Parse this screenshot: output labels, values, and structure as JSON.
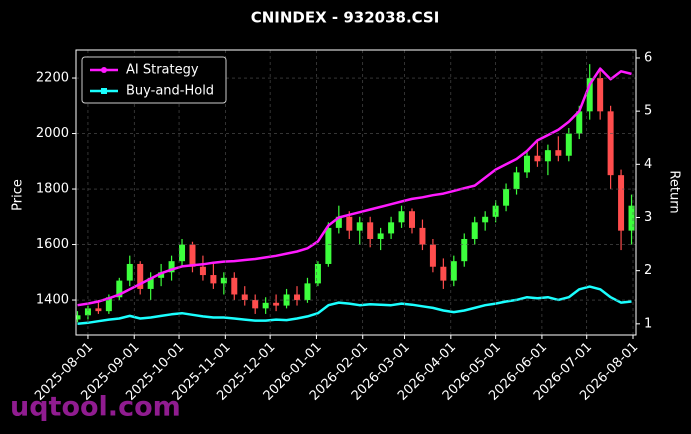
{
  "chart_data": {
    "type": "candlestick",
    "title": "CNINDEX - 932038.CSI",
    "ylabel": "Price",
    "y2label": "Return",
    "watermark": "uqtool.com",
    "x": [
      "2025-07-25",
      "2025-08-01",
      "2025-08-08",
      "2025-08-15",
      "2025-08-22",
      "2025-08-29",
      "2025-09-05",
      "2025-09-12",
      "2025-09-19",
      "2025-09-26",
      "2025-10-03",
      "2025-10-10",
      "2025-10-17",
      "2025-10-24",
      "2025-10-31",
      "2025-11-07",
      "2025-11-14",
      "2025-11-21",
      "2025-11-28",
      "2025-12-05",
      "2025-12-12",
      "2025-12-19",
      "2025-12-26",
      "2026-01-02",
      "2026-01-09",
      "2026-01-16",
      "2026-01-23",
      "2026-01-30",
      "2026-02-06",
      "2026-02-13",
      "2026-02-20",
      "2026-02-27",
      "2026-03-06",
      "2026-03-13",
      "2026-03-20",
      "2026-03-27",
      "2026-04-03",
      "2026-04-10",
      "2026-04-17",
      "2026-04-24",
      "2026-05-01",
      "2026-05-08",
      "2026-05-15",
      "2026-05-22",
      "2026-05-29",
      "2026-06-05",
      "2026-06-12",
      "2026-06-19",
      "2026-06-26",
      "2026-07-03",
      "2026-07-10",
      "2026-07-17",
      "2026-07-24",
      "2026-07-31"
    ],
    "candles": {
      "up_color": "#3dff3d",
      "down_color": "#ff4d4d",
      "open": [
        1330,
        1345,
        1370,
        1360,
        1410,
        1470,
        1530,
        1440,
        1480,
        1500,
        1540,
        1600,
        1520,
        1490,
        1460,
        1480,
        1420,
        1400,
        1370,
        1390,
        1380,
        1420,
        1400,
        1460,
        1530,
        1660,
        1700,
        1650,
        1680,
        1620,
        1640,
        1680,
        1720,
        1660,
        1600,
        1520,
        1470,
        1540,
        1620,
        1680,
        1700,
        1740,
        1800,
        1860,
        1920,
        1900,
        1940,
        1920,
        2000,
        2080,
        2200,
        2080,
        1850,
        1650
      ],
      "high": [
        1360,
        1380,
        1400,
        1420,
        1480,
        1560,
        1540,
        1500,
        1530,
        1560,
        1620,
        1610,
        1560,
        1530,
        1500,
        1500,
        1450,
        1420,
        1410,
        1420,
        1440,
        1450,
        1480,
        1540,
        1680,
        1740,
        1720,
        1700,
        1700,
        1660,
        1700,
        1740,
        1730,
        1690,
        1620,
        1550,
        1560,
        1640,
        1700,
        1720,
        1760,
        1820,
        1880,
        1940,
        1980,
        1960,
        1990,
        2020,
        2100,
        2250,
        2230,
        2100,
        1870,
        1780
      ],
      "low": [
        1320,
        1330,
        1350,
        1350,
        1400,
        1450,
        1420,
        1400,
        1450,
        1470,
        1520,
        1500,
        1470,
        1440,
        1420,
        1400,
        1380,
        1350,
        1350,
        1360,
        1370,
        1380,
        1390,
        1450,
        1520,
        1640,
        1620,
        1600,
        1590,
        1580,
        1620,
        1660,
        1640,
        1580,
        1500,
        1440,
        1450,
        1520,
        1600,
        1650,
        1680,
        1720,
        1780,
        1840,
        1880,
        1850,
        1900,
        1900,
        1980,
        2050,
        2050,
        1800,
        1580,
        1600
      ],
      "close": [
        1345,
        1370,
        1360,
        1410,
        1470,
        1530,
        1440,
        1480,
        1500,
        1540,
        1600,
        1520,
        1490,
        1460,
        1480,
        1420,
        1400,
        1370,
        1390,
        1380,
        1420,
        1400,
        1460,
        1530,
        1660,
        1700,
        1650,
        1680,
        1620,
        1640,
        1680,
        1720,
        1660,
        1600,
        1520,
        1470,
        1540,
        1620,
        1680,
        1700,
        1740,
        1800,
        1860,
        1920,
        1900,
        1940,
        1920,
        2000,
        2080,
        2200,
        2080,
        1850,
        1650,
        1740
      ]
    },
    "series": [
      {
        "name": "AI Strategy",
        "color": "#ff1aff",
        "axis": "y2",
        "values": [
          1.35,
          1.38,
          1.42,
          1.48,
          1.55,
          1.65,
          1.75,
          1.85,
          1.95,
          2.02,
          2.08,
          2.1,
          2.12,
          2.15,
          2.17,
          2.18,
          2.2,
          2.22,
          2.25,
          2.28,
          2.32,
          2.36,
          2.42,
          2.55,
          2.85,
          3.0,
          3.05,
          3.1,
          3.15,
          3.2,
          3.25,
          3.3,
          3.35,
          3.38,
          3.42,
          3.45,
          3.5,
          3.55,
          3.6,
          3.75,
          3.9,
          4.0,
          4.1,
          4.25,
          4.45,
          4.55,
          4.65,
          4.8,
          5.0,
          5.5,
          5.8,
          5.6,
          5.75,
          5.7
        ]
      },
      {
        "name": "Buy-and-Hold",
        "color": "#1affff",
        "axis": "y2",
        "values": [
          1.0,
          1.02,
          1.05,
          1.08,
          1.1,
          1.15,
          1.1,
          1.12,
          1.15,
          1.18,
          1.2,
          1.17,
          1.14,
          1.12,
          1.12,
          1.1,
          1.08,
          1.06,
          1.06,
          1.08,
          1.07,
          1.1,
          1.14,
          1.2,
          1.35,
          1.4,
          1.38,
          1.35,
          1.37,
          1.36,
          1.35,
          1.38,
          1.36,
          1.33,
          1.3,
          1.25,
          1.22,
          1.25,
          1.3,
          1.35,
          1.38,
          1.42,
          1.45,
          1.5,
          1.48,
          1.5,
          1.45,
          1.5,
          1.65,
          1.7,
          1.65,
          1.5,
          1.4,
          1.42
        ]
      }
    ],
    "xlim": [
      "2025-07-24",
      "2026-08-03"
    ],
    "xticks": [
      "2025-08-01",
      "2025-09-01",
      "2025-10-01",
      "2025-11-01",
      "2025-12-01",
      "2026-01-01",
      "2026-02-01",
      "2026-03-01",
      "2026-04-01",
      "2026-05-01",
      "2026-06-01",
      "2026-07-01",
      "2026-08-01"
    ],
    "ylim": [
      1274,
      2301
    ],
    "yticks": [
      1400,
      1600,
      1800,
      2000,
      2200
    ],
    "y2lim": [
      0.79,
      6.15
    ],
    "y2ticks": [
      1,
      2,
      3,
      4,
      5,
      6
    ],
    "grid": true,
    "legend": "upper left"
  }
}
